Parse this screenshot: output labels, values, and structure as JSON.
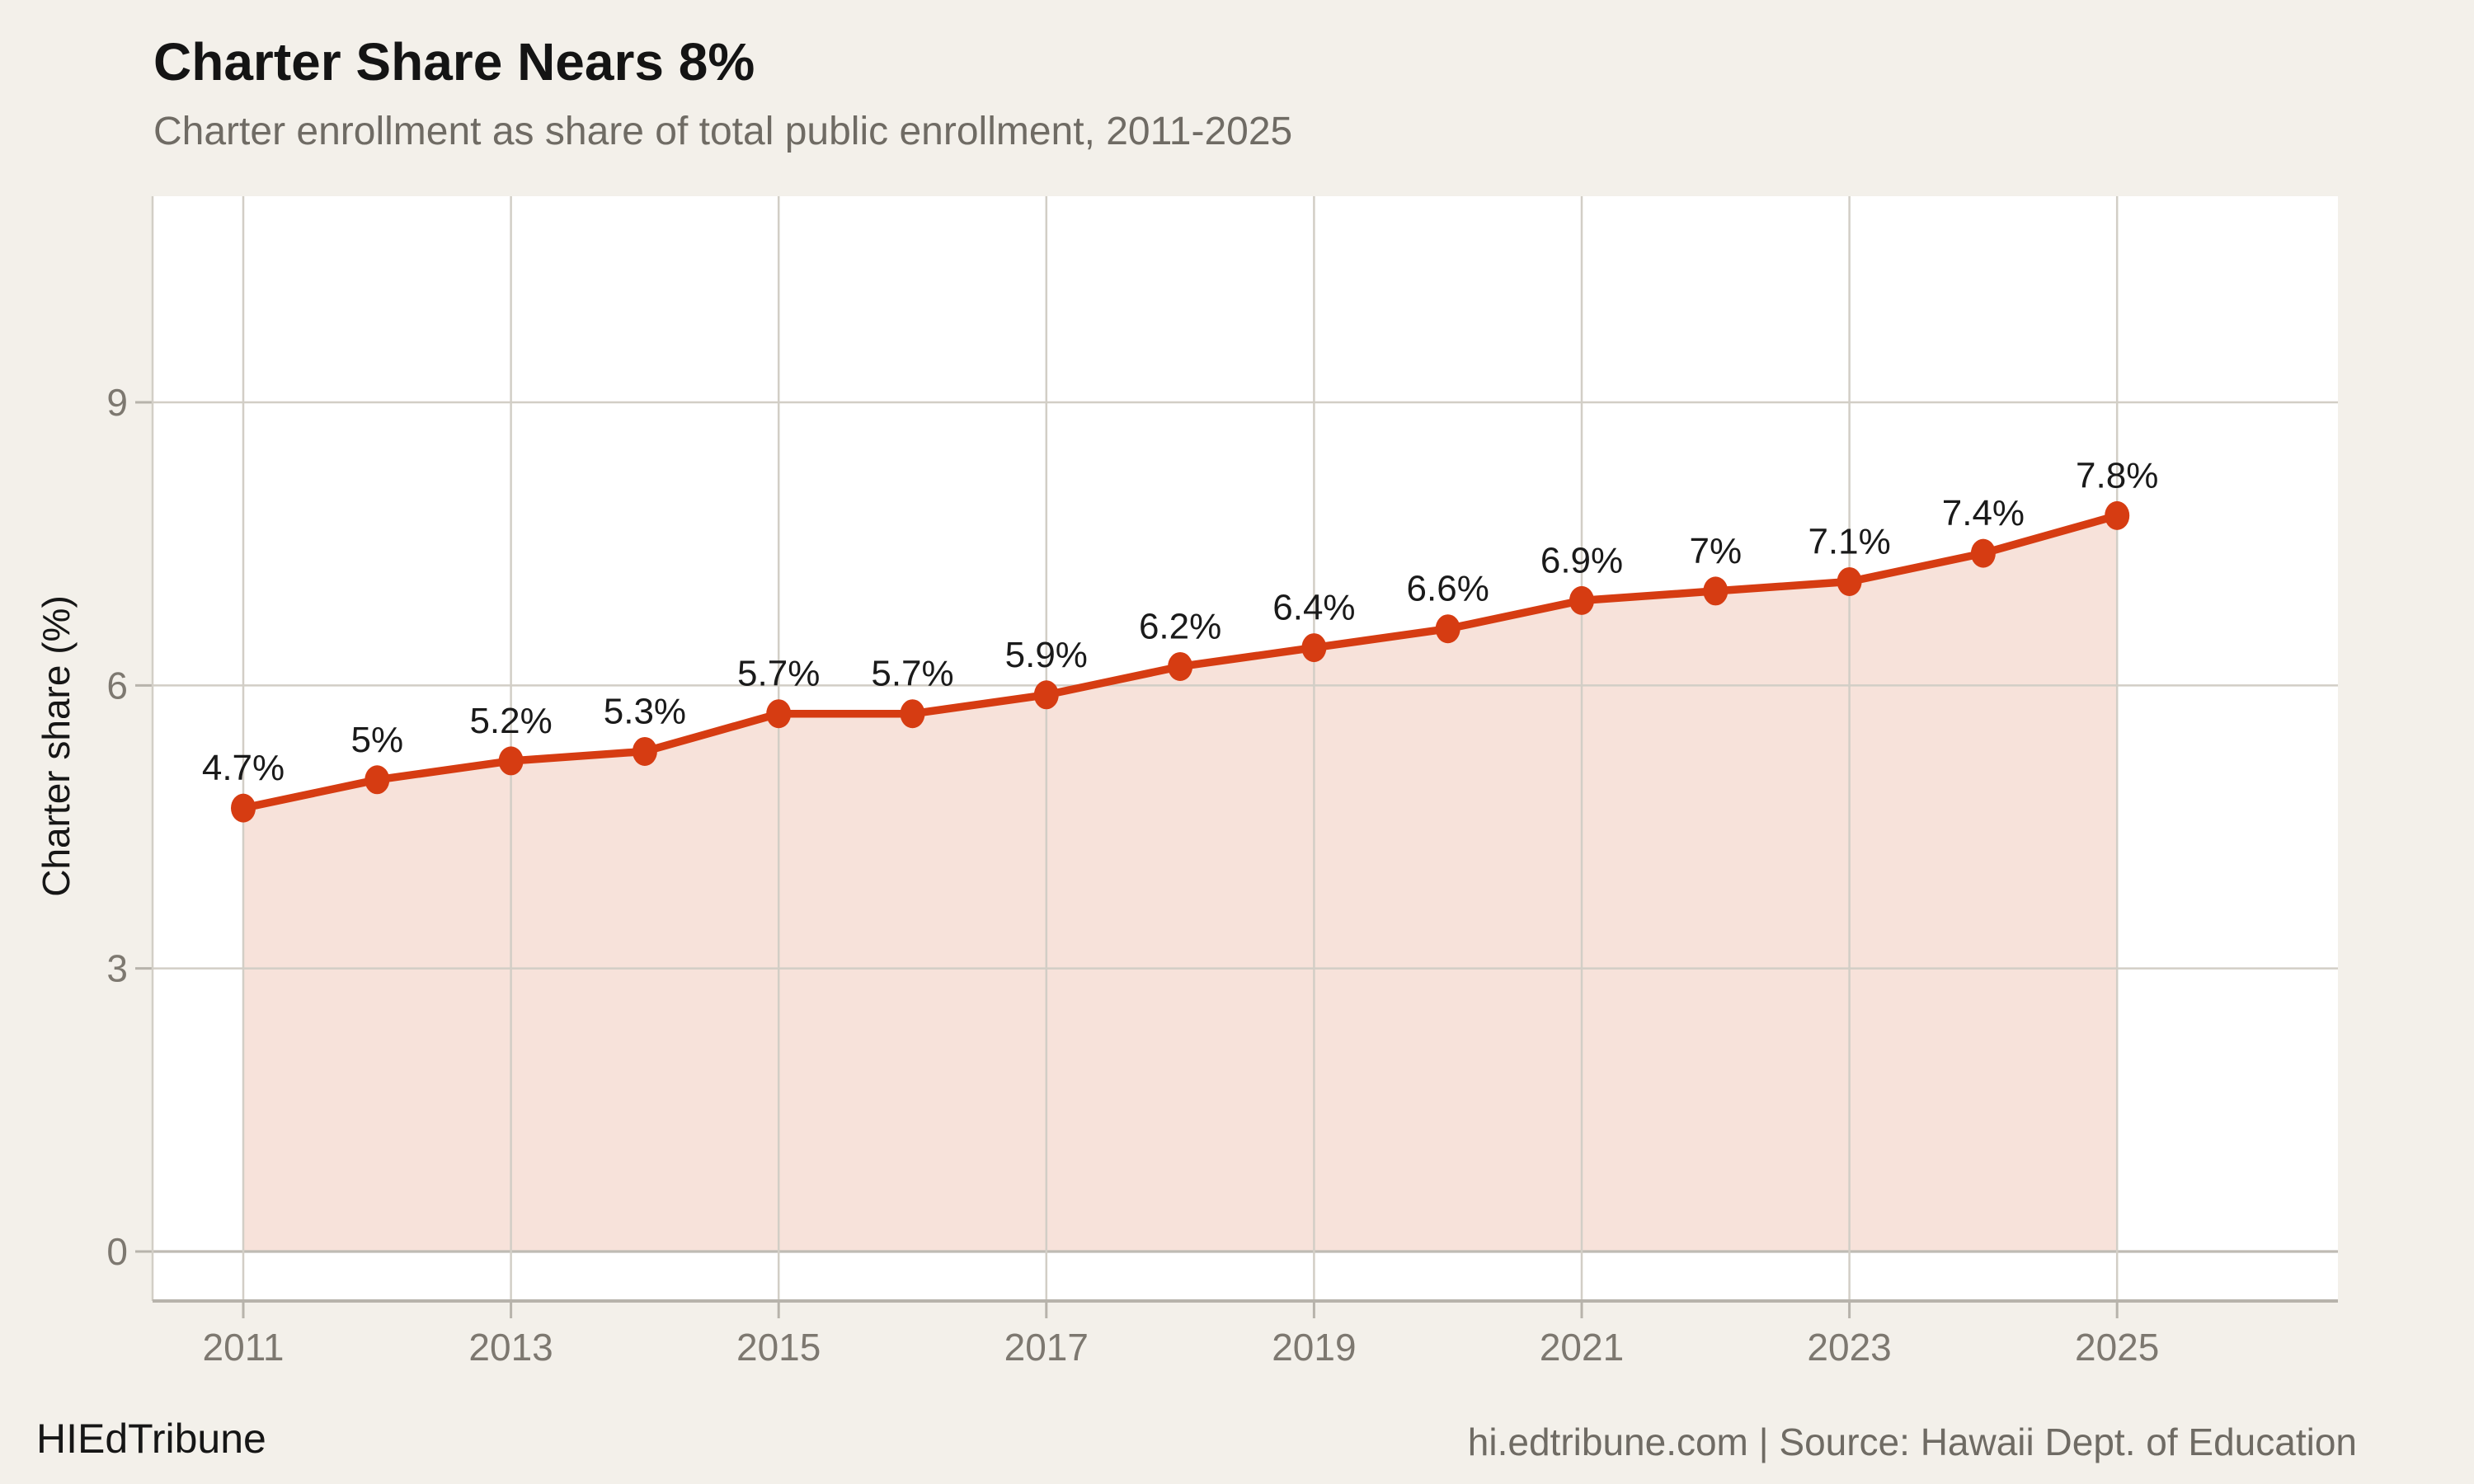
{
  "header": {
    "title": "Charter Share Nears 8%",
    "subtitle": "Charter enrollment as share of total public enrollment, 2011-2025"
  },
  "chart_data": {
    "type": "area",
    "title": "Charter Share Nears 8%",
    "subtitle": "Charter enrollment as share of total public enrollment, 2011-2025",
    "x": [
      2011,
      2012,
      2013,
      2014,
      2015,
      2016,
      2017,
      2018,
      2019,
      2020,
      2021,
      2022,
      2023,
      2024,
      2025
    ],
    "values": [
      4.7,
      5.0,
      5.2,
      5.3,
      5.7,
      5.7,
      5.9,
      6.2,
      6.4,
      6.6,
      6.9,
      7.0,
      7.1,
      7.4,
      7.8
    ],
    "point_labels": [
      "4.7%",
      "5%",
      "5.2%",
      "5.3%",
      "5.7%",
      "5.7%",
      "5.9%",
      "6.2%",
      "6.4%",
      "6.6%",
      "6.9%",
      "7%",
      "7.1%",
      "7.4%",
      "7.8%"
    ],
    "xlabel": "",
    "ylabel": "Charter share (%)",
    "ylim": [
      0,
      11
    ],
    "y_ticks": [
      0,
      3,
      6,
      9
    ],
    "x_ticks": [
      2011,
      2013,
      2015,
      2017,
      2019,
      2021,
      2023,
      2025
    ],
    "grid": true,
    "legend": "none"
  },
  "colors": {
    "background": "#f3f0ea",
    "plot_background": "#ffffff",
    "line": "#d63c12",
    "area_fill": "#f7e2da",
    "grid": "#d2cec6",
    "zero_line": "#bfbbb3",
    "axis": "#b7b3ab",
    "text_primary": "#1a1a1a",
    "text_secondary": "#6f6b64",
    "tick_label": "#7d7870"
  },
  "footer": {
    "brand": "HIEdTribune",
    "attribution": "hi.edtribune.com | Source: Hawaii Dept. of Education"
  }
}
